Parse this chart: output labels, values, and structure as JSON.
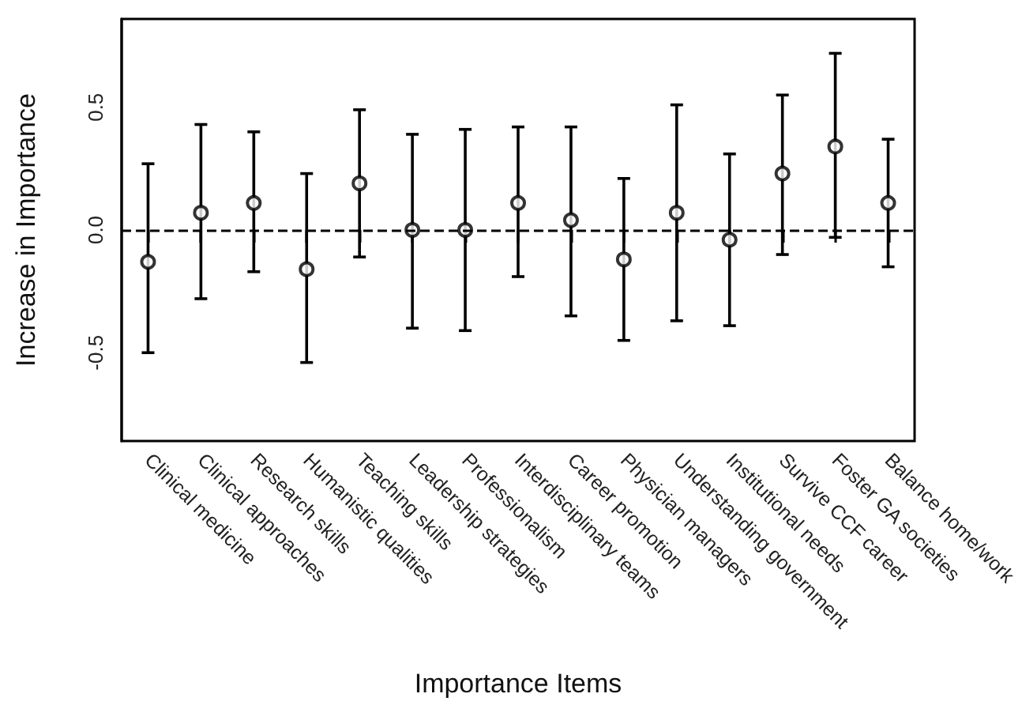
{
  "chart_data": {
    "type": "scatter",
    "xlabel": "Importance Items",
    "ylabel": "Increase in Importance",
    "categories": [
      "Clinical medicine",
      "Clinical approaches",
      "Research skills",
      "Humanistic qualities",
      "Teaching skills",
      "Leadership strategies",
      "Professionalism",
      "Interdisciplinary teams",
      "Career promotion",
      "Physician managers",
      "Understanding government",
      "Institutional needs",
      "Survive CCF career",
      "Foster GA societies",
      "Balance home/work"
    ],
    "series": [
      {
        "color": "#000000",
        "values": [
          -0.13,
          0.07,
          0.11,
          -0.16,
          0.19,
          0.0,
          0.0,
          0.11,
          0.04,
          -0.12,
          0.07,
          -0.04,
          0.23,
          0.34,
          0.11
        ],
        "errors": [
          [
            -0.5,
            0.27
          ],
          [
            -0.28,
            0.43
          ],
          [
            -0.17,
            0.4
          ],
          [
            -0.54,
            0.23
          ],
          [
            -0.11,
            0.49
          ],
          [
            -0.4,
            0.39
          ],
          [
            -0.41,
            0.41
          ],
          [
            -0.19,
            0.42
          ],
          [
            -0.35,
            0.42
          ],
          [
            -0.45,
            0.21
          ],
          [
            -0.37,
            0.51
          ],
          [
            -0.39,
            0.31
          ],
          [
            -0.1,
            0.55
          ],
          [
            -0.03,
            0.72
          ],
          [
            -0.15,
            0.37
          ]
        ]
      }
    ],
    "ylim": [
      -0.86,
      0.86
    ],
    "yticks": [
      -0.5,
      {
        "value": 0,
        "label": "0.0"
      },
      0.5
    ],
    "ref_lines": [
      {
        "axis": "y",
        "value": 0,
        "line_style": "dashed",
        "color": "#000000"
      }
    ],
    "marker": "circle",
    "grid": false
  }
}
